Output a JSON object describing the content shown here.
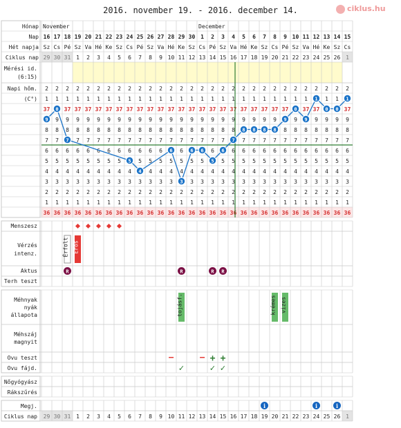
{
  "title": "2016. november 19. - 2016. december 14.",
  "logo": {
    "text": "ciklus.hu",
    "icon": "logo-icon"
  },
  "row_labels": {
    "month": "Hónap",
    "day": "Nap",
    "weekday": "Hét napja",
    "cycle_day": "Ciklus nap",
    "measure_time": "Mérési id.",
    "measure_time_value": "(6:15)",
    "temperature": "Napi hőm.",
    "temperature_unit": "(C°)",
    "menses": "Menszesz",
    "bleeding": "Vérzés",
    "bleeding2": "intenz.",
    "intercourse": "Aktus",
    "pregnancy_test": "Terh teszt",
    "cervix": "Méhnyak",
    "cervix2": "nyák",
    "cervix3": "állapota",
    "cervix_pos": "Méhszáj",
    "cervix_pos2": "magnyit",
    "ovu_test": "Ovu teszt",
    "ovu_pain": "Ovu fájd.",
    "gyn": "Nőgyógyász",
    "screening": "Rákszűrés",
    "notes": "Megj.",
    "cycle_day_bottom": "Ciklus nap"
  },
  "months": [
    "November",
    "December"
  ],
  "days": [
    "16",
    "17",
    "18",
    "19",
    "20",
    "21",
    "22",
    "23",
    "24",
    "25",
    "26",
    "27",
    "28",
    "29",
    "30",
    "1",
    "2",
    "3",
    "4",
    "5",
    "6",
    "7",
    "8",
    "9",
    "10",
    "11",
    "12",
    "13",
    "14",
    "15"
  ],
  "weekdays": [
    "Sz",
    "Cs",
    "Pé",
    "Sz",
    "Va",
    "Hé",
    "Ke",
    "Sz",
    "Cs",
    "Pé",
    "Sz",
    "Va",
    "Hé",
    "Ke",
    "Sz",
    "Cs",
    "Pé",
    "Sz",
    "Va",
    "Hé",
    "Ke",
    "Sz",
    "Cs",
    "Pé",
    "Sz",
    "Va",
    "Hé",
    "Ke",
    "Sz",
    "Cs"
  ],
  "cycle_days": [
    "29",
    "30",
    "31",
    "1",
    "2",
    "3",
    "4",
    "5",
    "6",
    "7",
    "8",
    "9",
    "10",
    "11",
    "12",
    "13",
    "14",
    "15",
    "16",
    "17",
    "18",
    "19",
    "20",
    "21",
    "22",
    "23",
    "24",
    "25",
    "26",
    "1"
  ],
  "temp_row_labels": [
    "2",
    "1",
    "37",
    "9",
    "8",
    "7",
    "6",
    "5",
    "4",
    "3",
    "2",
    "1",
    "36"
  ],
  "annotations": {
    "spotting": "Érfolt",
    "strong": "Erős",
    "cervix_sticky": "tojásf.",
    "cervix_creamy1": "krémes",
    "cervix_creamy2": "vizes",
    "intercourse_mark": "R",
    "notes_mark": "i",
    "ovu_negative": "−",
    "ovu_positive": "+",
    "ovu_pain_mark": "✓"
  },
  "colors": {
    "grid": "#c8c8c8",
    "label_bg": "#eeeeee",
    "cycle_bg": "#e4e4e4",
    "yellow": "#fffbcc",
    "line": "#1a73c8",
    "red": "#d32f2f",
    "purple": "#7b1045",
    "green": "#2e7d32",
    "mark_red": "#e53935",
    "mark_green": "#66bb6a",
    "note_blue": "#1565c0"
  },
  "chart_data": {
    "type": "line",
    "title": "2016. november 19. - 2016. december 14.",
    "x": [
      "16",
      "17",
      "18",
      "19",
      "20",
      "21",
      "22",
      "23",
      "24",
      "25",
      "26",
      "27",
      "28",
      "29",
      "30",
      "1",
      "2",
      "3",
      "4",
      "5",
      "6",
      "7",
      "8",
      "9",
      "10",
      "11",
      "12",
      "13",
      "14",
      "15"
    ],
    "series": [
      {
        "values": [
          36.9,
          37.0,
          36.7,
          null,
          null,
          null,
          null,
          null,
          36.5,
          36.4,
          null,
          null,
          36.6,
          36.3,
          36.6,
          36.6,
          36.5,
          36.6,
          36.7,
          36.8,
          36.8,
          36.8,
          36.8,
          36.9,
          37.0,
          36.9,
          37.1,
          37.0,
          37.0,
          37.1
        ]
      }
    ],
    "ylabel": "Napi hőm. (C°)",
    "ylim": [
      36.0,
      37.2
    ],
    "coverline": 36.65,
    "grid": true
  }
}
